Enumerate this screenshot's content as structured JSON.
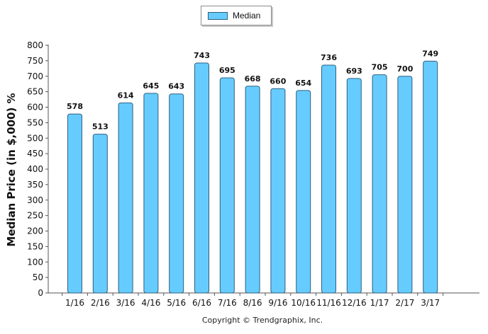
{
  "chart_data": {
    "type": "bar",
    "categories": [
      "1/16",
      "2/16",
      "3/16",
      "4/16",
      "5/16",
      "6/16",
      "7/16",
      "8/16",
      "9/16",
      "10/16",
      "11/16",
      "12/16",
      "1/17",
      "2/17",
      "3/17"
    ],
    "series": [
      {
        "name": "Median",
        "values": [
          578,
          513,
          614,
          645,
          643,
          743,
          695,
          668,
          660,
          654,
          736,
          693,
          705,
          700,
          749
        ],
        "color": "#66ccff"
      }
    ],
    "data_labels": [
      "578",
      "513",
      "614",
      "645",
      "643",
      "743",
      "695",
      "668",
      "660",
      "654",
      "736",
      "693",
      "705",
      "700",
      "749"
    ],
    "ylabel": "Median Price (in $,000) %",
    "ylim": [
      0,
      800
    ],
    "yticks": [
      0,
      50,
      100,
      150,
      200,
      250,
      300,
      350,
      400,
      450,
      500,
      550,
      600,
      650,
      700,
      750,
      800
    ],
    "ytick_labels": [
      "0",
      "50",
      "100",
      "150",
      "200",
      "250",
      "300",
      "350",
      "400",
      "450",
      "500",
      "550",
      "600",
      "650",
      "700",
      "750",
      "800"
    ],
    "grid": false,
    "legend": {
      "position": "top-center",
      "entries": [
        "Median"
      ]
    }
  },
  "footer": {
    "copyright": "Copyright © Trendgraphix, Inc."
  }
}
